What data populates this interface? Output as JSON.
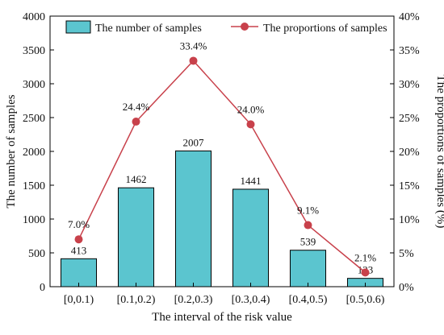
{
  "chart_data": {
    "type": "bar",
    "title": "",
    "xlabel": "The interval of the risk value",
    "ylabel": "The number of samples",
    "y2label": "The proportions of samples (%)",
    "categories": [
      "[0,0.1)",
      "[0.1,0.2)",
      "[0.2,0.3)",
      "[0.3,0.4)",
      "[0.4,0.5)",
      "[0.5,0.6)"
    ],
    "ylim": [
      0,
      4000
    ],
    "yticks": [
      0,
      500,
      1000,
      1500,
      2000,
      2500,
      3000,
      3500,
      4000
    ],
    "y2lim": [
      0,
      40
    ],
    "y2ticks": [
      "0%",
      "5%",
      "10%",
      "15%",
      "20%",
      "25%",
      "30%",
      "35%",
      "40%"
    ],
    "legend_position": "top",
    "grid": false,
    "series": [
      {
        "name": "The number of samples",
        "type": "bar",
        "axis": "left",
        "color": "#5bc5cf",
        "values": [
          413,
          1462,
          2007,
          1441,
          539,
          123
        ],
        "labels": [
          "413",
          "1462",
          "2007",
          "1441",
          "539",
          "123"
        ]
      },
      {
        "name": "The proportions of samples",
        "type": "line",
        "axis": "right",
        "color": "#c8414b",
        "values": [
          7.0,
          24.4,
          33.4,
          24.0,
          9.1,
          2.1
        ],
        "labels": [
          "7.0%",
          "24.4%",
          "33.4%",
          "24.0%",
          "9.1%",
          "2.1%"
        ]
      }
    ]
  }
}
